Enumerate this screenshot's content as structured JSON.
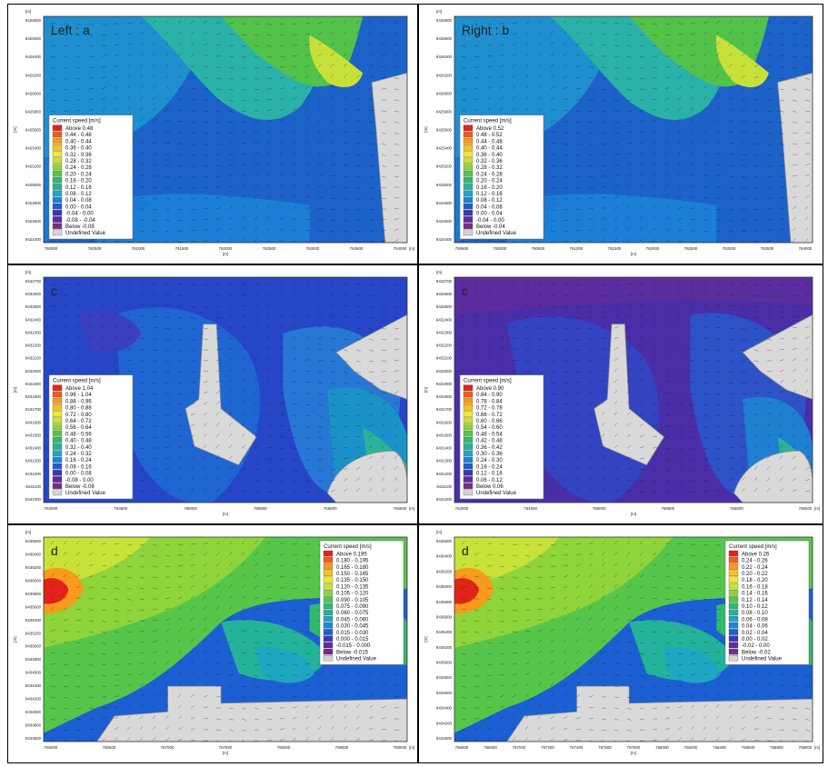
{
  "figure": {
    "panels": [
      {
        "id": "a",
        "label": "Left : a",
        "legend_title": "Current speed [m/s]",
        "legend_pos": "left",
        "legend_entries": [
          "Above  0.48",
          "0.44 - 0.48",
          "0.40 - 0.44",
          "0.36 - 0.40",
          "0.32 - 0.36",
          "0.28 - 0.32",
          "0.24 - 0.28",
          "0.20 - 0.24",
          "0.16 - 0.20",
          "0.12 - 0.16",
          "0.08 - 0.12",
          "0.04 - 0.08",
          "0.00 - 0.04",
          "-0.04 - 0.00",
          "-0.08 - -0.04",
          "Below  -0.08",
          "Undefined Value"
        ],
        "y_ticks": [
          "9426800",
          "9426600",
          "9426400",
          "9426200",
          "9426000",
          "9425800",
          "9425600",
          "9425400",
          "9425200",
          "9425000",
          "9424800",
          "9424600",
          "9424400"
        ],
        "x_ticks": [
          "760000",
          "760500",
          "761000",
          "761500",
          "762000",
          "762500",
          "763000",
          "763500",
          "764000"
        ],
        "unit_top": "[m]",
        "unit_right": "[m]",
        "x_axis": "[m]",
        "y_axis": "[m]",
        "theme": "green"
      },
      {
        "id": "b",
        "label": "Right : b",
        "legend_title": "Current speed [m/s]",
        "legend_pos": "left",
        "legend_entries": [
          "Above  0.52",
          "0.48 - 0.52",
          "0.44 - 0.48",
          "0.40 - 0.44",
          "0.36 - 0.40",
          "0.32 - 0.36",
          "0.28 - 0.32",
          "0.24 - 0.28",
          "0.20 - 0.24",
          "0.16 - 0.20",
          "0.12 - 0.16",
          "0.08 - 0.12",
          "0.04 - 0.08",
          "0.00 - 0.04",
          "-0.04 - 0.00",
          "Below  -0.04",
          "Undefined Value"
        ],
        "y_ticks": [
          "9426800",
          "9426600",
          "9426400",
          "9426200",
          "9426000",
          "9425800",
          "9425600",
          "9425400",
          "9425200",
          "9425000",
          "9424800",
          "9424600",
          "9424400"
        ],
        "x_ticks": [
          "759500",
          "760000",
          "760500",
          "761000",
          "761500",
          "762000",
          "762500",
          "763000",
          "763500",
          "764000"
        ],
        "unit_top": "[m]",
        "unit_right": "",
        "x_axis": "[m]",
        "y_axis": "[m]",
        "theme": "green"
      },
      {
        "id": "c",
        "label": "c",
        "legend_title": "Current speed [m/s]",
        "legend_pos": "left",
        "legend_entries": [
          "Above  1.04",
          "0.96 - 1.04",
          "0.88 - 0.96",
          "0.80 - 0.88",
          "0.72 - 0.80",
          "0.64 - 0.72",
          "0.56 - 0.64",
          "0.48 - 0.56",
          "0.40 - 0.48",
          "0.32 - 0.40",
          "0.24 - 0.32",
          "0.16 - 0.24",
          "0.08 - 0.16",
          "0.00 - 0.08",
          "-0.08 - 0.00",
          "Below  -0.08",
          "Undefined Value"
        ],
        "y_ticks": [
          "9432700",
          "9432600",
          "9432500",
          "9432400",
          "9432300",
          "9432200",
          "9432100",
          "9432000",
          "9431900",
          "9431800",
          "9431700",
          "9431600",
          "9431500",
          "9431400",
          "9431300",
          "9431200",
          "9431100",
          "9431000"
        ],
        "x_ticks": [
          "764000",
          "764500",
          "765000",
          "765500",
          "766000",
          "766500"
        ],
        "unit_top": "[m]",
        "unit_right": "[m]",
        "x_axis": "[m]",
        "y_axis": "[m]",
        "theme": "blue"
      },
      {
        "id": "c2",
        "label": "c",
        "legend_title": "Current speed [m/s]",
        "legend_pos": "left",
        "legend_entries": [
          "Above  0.90",
          "0.84 - 0.90",
          "0.78 - 0.84",
          "0.72 - 0.78",
          "0.66 - 0.72",
          "0.60 - 0.66",
          "0.54 - 0.60",
          "0.48 - 0.54",
          "0.42 - 0.48",
          "0.36 - 0.42",
          "0.30 - 0.36",
          "0.24 - 0.30",
          "0.18 - 0.24",
          "0.12 - 0.18",
          "0.06 - 0.12",
          "Below  0.06",
          "Undefined Value"
        ],
        "y_ticks": [
          "9432700",
          "9432600",
          "9432500",
          "9432400",
          "9432300",
          "9432200",
          "9432100",
          "9432000",
          "9431900",
          "9431800",
          "9431700",
          "9431600",
          "9431500",
          "9431400",
          "9431300",
          "9431200",
          "9431100",
          "9431000"
        ],
        "x_ticks": [
          "764000",
          "764500",
          "765000",
          "765500",
          "766000",
          "766500"
        ],
        "unit_top": "[m]",
        "unit_right": "[m]",
        "x_axis": "[m]",
        "y_axis": "[m]",
        "theme": "purple"
      },
      {
        "id": "d",
        "label": "d",
        "legend_title": "Current speed [m/s]",
        "legend_pos": "right",
        "legend_entries": [
          "Above  0.195",
          "0.180 - 0.195",
          "0.165 - 0.180",
          "0.150 - 0.165",
          "0.135 - 0.150",
          "0.120 - 0.135",
          "0.105 - 0.120",
          "0.090 - 0.105",
          "0.075 - 0.090",
          "0.060 - 0.075",
          "0.045 - 0.060",
          "0.030 - 0.045",
          "0.015 - 0.030",
          "0.000 - 0.015",
          "-0.015 - 0.000",
          "Below  -0.015",
          "Undefined Value"
        ],
        "y_ticks": [
          "9436600",
          "9436400",
          "9436200",
          "9436000",
          "9435800",
          "9435600",
          "9435400",
          "9435200",
          "9435000",
          "9434800",
          "9434600",
          "9434400",
          "9434200",
          "9434000",
          "9433800",
          "9433600"
        ],
        "x_ticks": [
          "766000",
          "766500",
          "767000",
          "767500",
          "768000",
          "768500",
          "769000"
        ],
        "unit_top": "[m]",
        "unit_right": "[m]",
        "x_axis": "[m]",
        "y_axis": "[m]",
        "theme": "green2"
      },
      {
        "id": "d2",
        "label": "d",
        "legend_title": "Current speed [m/s]",
        "legend_pos": "right",
        "legend_entries": [
          "Above  0.26",
          "0.24 - 0.26",
          "0.22 - 0.24",
          "0.20 - 0.22",
          "0.18 - 0.20",
          "0.16 - 0.18",
          "0.14 - 0.16",
          "0.12 - 0.14",
          "0.10 - 0.12",
          "0.08 - 0.10",
          "0.06 - 0.08",
          "0.04 - 0.06",
          "0.02 - 0.04",
          "0.00 - 0.02",
          "-0.02 - 0.00",
          "Below  -0.02",
          "Undefined Value"
        ],
        "y_ticks": [
          "9436600",
          "9436400",
          "9436200",
          "9436000",
          "9435800",
          "9435600",
          "9435400",
          "9435200",
          "9435000",
          "9434800",
          "9434600",
          "9434400",
          "9434200",
          "9434000"
        ],
        "x_ticks": [
          "766600",
          "766800",
          "767000",
          "767200",
          "767400",
          "767600",
          "767800",
          "768000",
          "768200",
          "768400",
          "768600",
          "768800",
          "769000"
        ],
        "unit_top": "[m]",
        "unit_right": "[m]",
        "x_axis": "[m]",
        "y_axis": "[m]",
        "theme": "green2"
      }
    ],
    "legend_colors": [
      "#e2231a",
      "#f25c14",
      "#f79a1d",
      "#f8c11d",
      "#f3e92a",
      "#c9e23a",
      "#8fd43a",
      "#56c64a",
      "#2fbb6e",
      "#24b39a",
      "#1ea6c2",
      "#1a86d6",
      "#1c5fd2",
      "#3a36b8",
      "#5e2c9e",
      "#7a2b87",
      "#d4d4d4"
    ]
  },
  "chart_data": [
    {
      "type": "heatmap",
      "title": "Left : a",
      "xlabel": "[m]",
      "ylabel": "[m]",
      "colorbar_title": "Current speed [m/s]",
      "xlim": [
        760000,
        764000
      ],
      "ylim": [
        9424400,
        9426800
      ],
      "classes": [
        "Above  0.48",
        "0.44 - 0.48",
        "0.40 - 0.44",
        "0.36 - 0.40",
        "0.32 - 0.36",
        "0.28 - 0.32",
        "0.24 - 0.28",
        "0.20 - 0.24",
        "0.16 - 0.20",
        "0.12 - 0.16",
        "0.08 - 0.12",
        "0.04 - 0.08",
        "0.00 - 0.04",
        "-0.04 - 0.00",
        "-0.08 - -0.04",
        "Below  -0.08",
        "Undefined Value"
      ]
    },
    {
      "type": "heatmap",
      "title": "Right : b",
      "xlabel": "[m]",
      "ylabel": "[m]",
      "colorbar_title": "Current speed [m/s]",
      "xlim": [
        759500,
        764000
      ],
      "ylim": [
        9424400,
        9426800
      ],
      "classes": [
        "Above  0.52",
        "0.48 - 0.52",
        "0.44 - 0.48",
        "0.40 - 0.44",
        "0.36 - 0.40",
        "0.32 - 0.36",
        "0.28 - 0.32",
        "0.24 - 0.28",
        "0.20 - 0.24",
        "0.16 - 0.20",
        "0.12 - 0.16",
        "0.08 - 0.12",
        "0.04 - 0.08",
        "0.00 - 0.04",
        "-0.04 - 0.00",
        "Below  -0.04",
        "Undefined Value"
      ]
    },
    {
      "type": "heatmap",
      "title": "c",
      "xlabel": "[m]",
      "ylabel": "[m]",
      "colorbar_title": "Current speed [m/s]",
      "xlim": [
        764000,
        766500
      ],
      "ylim": [
        9431000,
        9432700
      ],
      "classes": [
        "Above  1.04",
        "0.96 - 1.04",
        "0.88 - 0.96",
        "0.80 - 0.88",
        "0.72 - 0.80",
        "0.64 - 0.72",
        "0.56 - 0.64",
        "0.48 - 0.56",
        "0.40 - 0.48",
        "0.32 - 0.40",
        "0.24 - 0.32",
        "0.16 - 0.24",
        "0.08 - 0.16",
        "0.00 - 0.08",
        "-0.08 - 0.00",
        "Below  -0.08",
        "Undefined Value"
      ]
    },
    {
      "type": "heatmap",
      "title": "c",
      "xlabel": "[m]",
      "ylabel": "[m]",
      "colorbar_title": "Current speed [m/s]",
      "xlim": [
        764000,
        766500
      ],
      "ylim": [
        9431000,
        9432700
      ],
      "classes": [
        "Above  0.90",
        "0.84 - 0.90",
        "0.78 - 0.84",
        "0.72 - 0.78",
        "0.66 - 0.72",
        "0.60 - 0.66",
        "0.54 - 0.60",
        "0.48 - 0.54",
        "0.42 - 0.48",
        "0.36 - 0.42",
        "0.30 - 0.36",
        "0.24 - 0.30",
        "0.18 - 0.24",
        "0.12 - 0.18",
        "0.06 - 0.12",
        "Below  0.06",
        "Undefined Value"
      ]
    },
    {
      "type": "heatmap",
      "title": "d",
      "xlabel": "[m]",
      "ylabel": "[m]",
      "colorbar_title": "Current speed [m/s]",
      "xlim": [
        766000,
        769000
      ],
      "ylim": [
        9433600,
        9436600
      ],
      "classes": [
        "Above  0.195",
        "0.180 - 0.195",
        "0.165 - 0.180",
        "0.150 - 0.165",
        "0.135 - 0.150",
        "0.120 - 0.135",
        "0.105 - 0.120",
        "0.090 - 0.105",
        "0.075 - 0.090",
        "0.060 - 0.075",
        "0.045 - 0.060",
        "0.030 - 0.045",
        "0.015 - 0.030",
        "0.000 - 0.015",
        "-0.015 - 0.000",
        "Below  -0.015",
        "Undefined Value"
      ]
    },
    {
      "type": "heatmap",
      "title": "d",
      "xlabel": "[m]",
      "ylabel": "[m]",
      "colorbar_title": "Current speed [m/s]",
      "xlim": [
        766600,
        769000
      ],
      "ylim": [
        9434000,
        9436600
      ],
      "classes": [
        "Above  0.26",
        "0.24 - 0.26",
        "0.22 - 0.24",
        "0.20 - 0.22",
        "0.18 - 0.20",
        "0.16 - 0.18",
        "0.14 - 0.16",
        "0.12 - 0.14",
        "0.10 - 0.12",
        "0.08 - 0.10",
        "0.06 - 0.08",
        "0.04 - 0.06",
        "0.02 - 0.04",
        "0.00 - 0.02",
        "-0.02 - 0.00",
        "Below  -0.02",
        "Undefined Value"
      ]
    }
  ]
}
